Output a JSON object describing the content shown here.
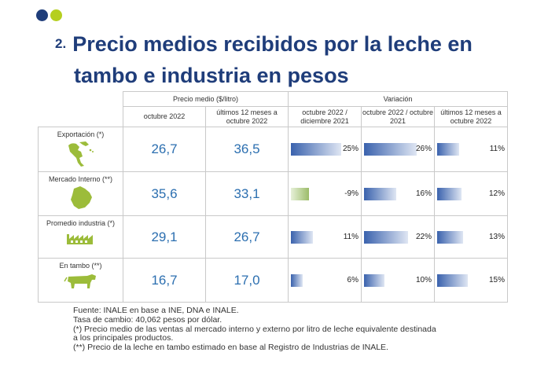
{
  "colors": {
    "dot1": "#1f3d7a",
    "dot2": "#b5cf1f",
    "title": "#1f3d7a",
    "numbers": "#2c6fb0",
    "bar_positive": "#3a62ad",
    "bar_negative": "#9cbc6a"
  },
  "title": {
    "number": "2.",
    "line1": "Precio medios recibidos por la leche en",
    "line2": "tambo e industria en pesos"
  },
  "table": {
    "group_headers": {
      "price": "Precio medio ($/litro)",
      "variation": "Variación"
    },
    "sub_headers": [
      "octubre 2022",
      "últimos 12 meses a octubre 2022",
      "octubre 2022 / diciembre 2021",
      "octubre 2022 / octubre 2021",
      "últimos 12 meses a octubre 2022"
    ],
    "rows": [
      {
        "label": "Exportación (*)",
        "icon": "world-map-icon",
        "price_oct": "26,7",
        "price_12m": "36,5",
        "var": [
          {
            "text": "25%",
            "value": 25
          },
          {
            "text": "26%",
            "value": 26
          },
          {
            "text": "11%",
            "value": 11
          }
        ]
      },
      {
        "label": "Mercado Interno (**)",
        "icon": "uruguay-map-icon",
        "price_oct": "35,6",
        "price_12m": "33,1",
        "var": [
          {
            "text": "-9%",
            "value": -9
          },
          {
            "text": "16%",
            "value": 16
          },
          {
            "text": "12%",
            "value": 12
          }
        ]
      },
      {
        "label": "Promedio industria (*)",
        "icon": "factory-icon",
        "price_oct": "29,1",
        "price_12m": "26,7",
        "var": [
          {
            "text": "11%",
            "value": 11
          },
          {
            "text": "22%",
            "value": 22
          },
          {
            "text": "13%",
            "value": 13
          }
        ]
      },
      {
        "label": "En tambo (**)",
        "icon": "cow-icon",
        "price_oct": "16,7",
        "price_12m": "17,0",
        "var": [
          {
            "text": "6%",
            "value": 6
          },
          {
            "text": "10%",
            "value": 10
          },
          {
            "text": "15%",
            "value": 15
          }
        ]
      }
    ]
  },
  "notes": [
    "Fuente: INALE en base a INE, DNA e INALE.",
    "Tasa de cambio: 40,062 pesos por dólar.",
    "(*) Precio medio de las ventas al mercado interno y externo por litro de leche equivalente destinada",
    "a los principales productos.",
    "(**) Precio de la leche en tambo estimado en base al Registro de Industrias de INALE."
  ]
}
